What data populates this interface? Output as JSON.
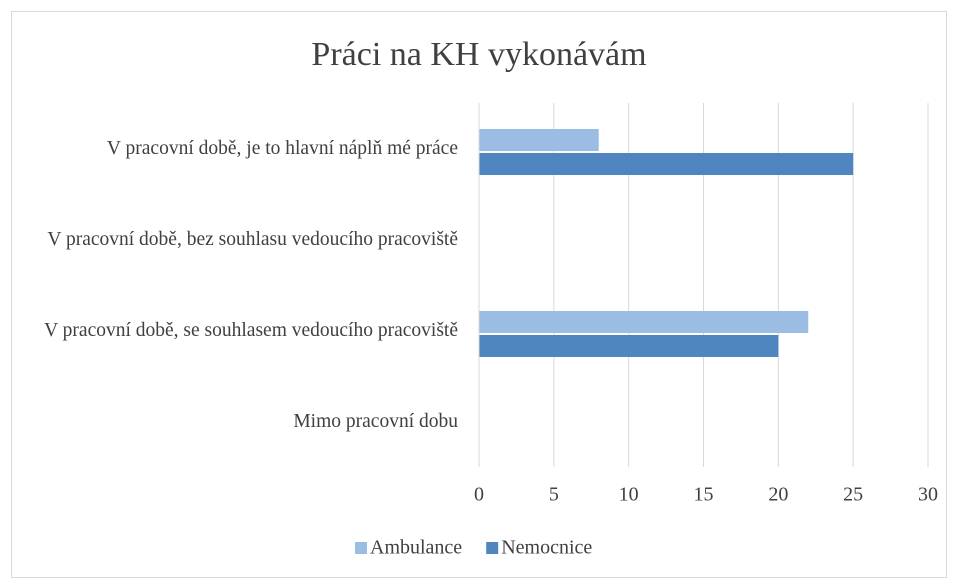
{
  "chart_data": {
    "type": "bar",
    "orientation": "horizontal",
    "title": "Práci na KH vykonávám",
    "categories": [
      "V pracovní době, je to hlavní náplň mé práce",
      "V pracovní době, bez souhlasu vedoucího pracoviště",
      "V pracovní době, se souhlasem vedoucího pracoviště",
      "Mimo pracovní dobu"
    ],
    "series": [
      {
        "name": "Ambulance",
        "color": "#9cbde3",
        "values": [
          8,
          0,
          22,
          0
        ]
      },
      {
        "name": "Nemocnice",
        "color": "#4f86bf",
        "values": [
          25,
          0,
          20,
          0
        ]
      }
    ],
    "xlim": [
      0,
      30
    ],
    "xticks": [
      0,
      5,
      10,
      15,
      20,
      25,
      30
    ],
    "grid": true,
    "legend": "bottom"
  }
}
